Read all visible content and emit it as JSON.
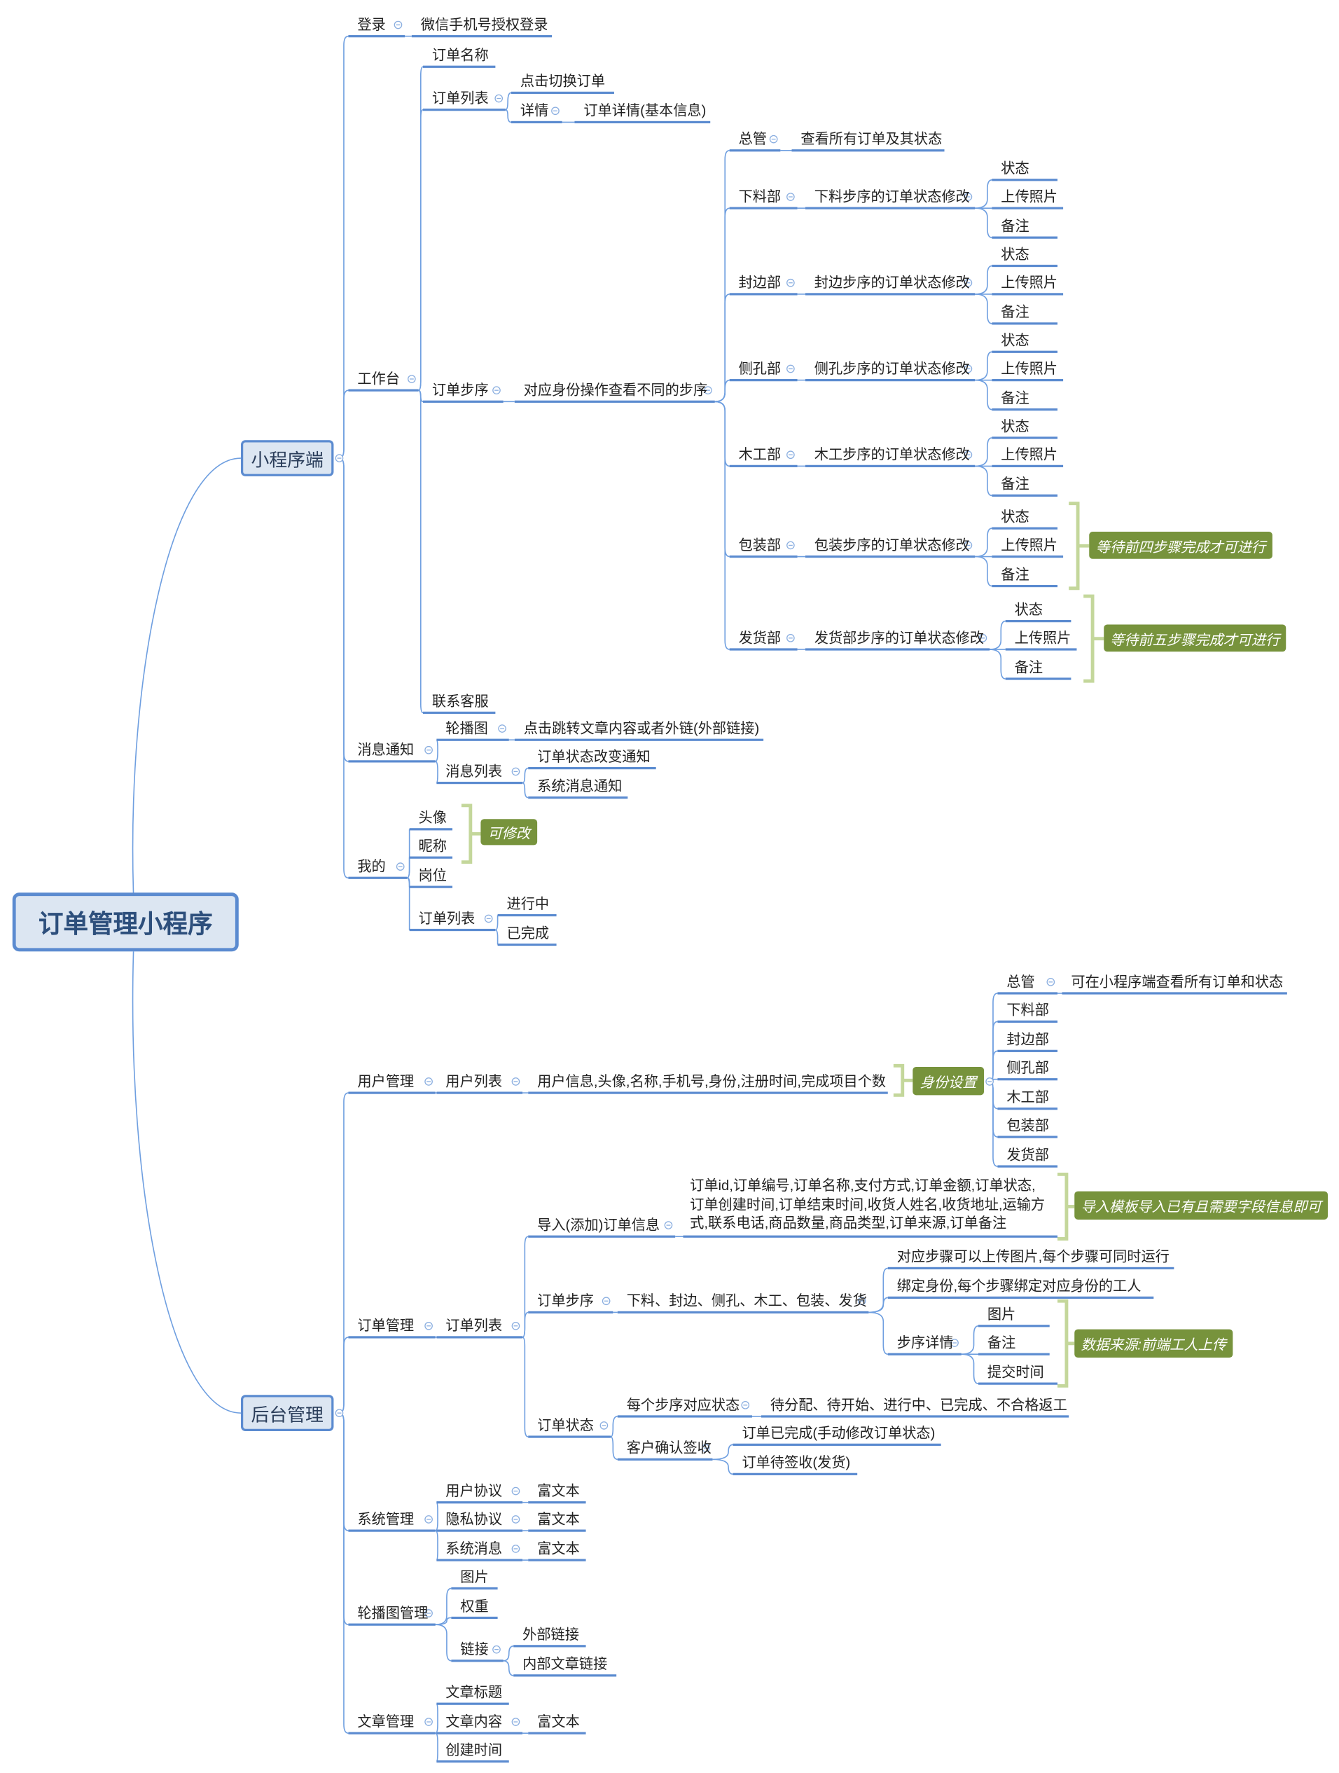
{
  "root": "订单管理小程序",
  "mini_program": "小程序端",
  "admin": "后台管理",
  "colors": {
    "line": "#5b8bd0",
    "box_fill": "#dce6f2",
    "tag_fill": "#77933c",
    "bracket": "#c4d79b"
  },
  "icons": {
    "collapse": "collapse-toggle-icon"
  },
  "nodes": {
    "login": "登录",
    "login_wx": "微信手机号授权登录",
    "wb": "工作台",
    "wb_name": "订单名称",
    "wb_list": "订单列表",
    "wb_list_switch": "点击切换订单",
    "wb_list_detail": "详情",
    "wb_list_detail_info": "订单详情(基本信息)",
    "wb_step": "订单步序",
    "wb_step_desc": "对应身份操作查看不同的步序",
    "d0": "总管",
    "d0c": "查看所有订单及其状态",
    "d1": "下料部",
    "d1c": "下料步序的订单状态修改",
    "d1s": "状态",
    "d1p": "上传照片",
    "d1r": "备注",
    "d2": "封边部",
    "d2c": "封边步序的订单状态修改",
    "d2s": "状态",
    "d2p": "上传照片",
    "d2r": "备注",
    "d3": "侧孔部",
    "d3c": "侧孔步序的订单状态修改",
    "d3s": "状态",
    "d3p": "上传照片",
    "d3r": "备注",
    "d4": "木工部",
    "d4c": "木工步序的订单状态修改",
    "d4s": "状态",
    "d4p": "上传照片",
    "d4r": "备注",
    "d5": "包装部",
    "d5c": "包装步序的订单状态修改",
    "d5s": "状态",
    "d5p": "上传照片",
    "d5r": "备注",
    "d6": "发货部",
    "d6c": "发货部步序的订单状态修改",
    "d6s": "状态",
    "d6p": "上传照片",
    "d6r": "备注",
    "wb_cs": "联系客服",
    "msg": "消息通知",
    "msg_banner": "轮播图",
    "msg_banner_c": "点击跳转文章内容或者外链(外部链接)",
    "msg_list": "消息列表",
    "msg_list_order": "订单状态改变通知",
    "msg_list_sys": "系统消息通知",
    "me": "我的",
    "me_avatar": "头像",
    "me_nick": "昵称",
    "me_post": "岗位",
    "me_orders": "订单列表",
    "me_orders_doing": "进行中",
    "me_orders_done": "已完成",
    "um": "用户管理",
    "um_list": "用户列表",
    "um_info": "用户信息,头像,名称,手机号,身份,注册时间,完成项目个数",
    "r0": "总管",
    "r0c": "可在小程序端查看所有订单和状态",
    "r1": "下料部",
    "r2": "封边部",
    "r3": "侧孔部",
    "r4": "木工部",
    "r5": "包装部",
    "r6": "发货部",
    "om": "订单管理",
    "om_list": "订单列表",
    "om_imp": "导入(添加)订单信息",
    "om_imp_f": "订单id,订单编号,订单名称,支付方式,订单金额,订单状态,\n订单创建时间,订单结束时间,收货人姓名,收货地址,运输方\n式,联系电话,商品数量,商品类型,订单来源,订单备注",
    "om_step": "订单步序",
    "om_step_c": "下料、封边、侧孔、木工、包装、发货",
    "om_step_1": "对应步骤可以上传图片,每个步骤可同时运行",
    "om_step_2": "绑定身份,每个步骤绑定对应身份的工人",
    "om_step_d": "步序详情",
    "om_step_d1": "图片",
    "om_step_d2": "备注",
    "om_step_d3": "提交时间",
    "om_stat": "订单状态",
    "om_stat_1": "每个步序对应状态",
    "om_stat_1c": "待分配、待开始、进行中、已完成、不合格返工",
    "om_stat_2": "客户确认签收",
    "om_stat_2a": "订单已完成(手动修改订单状态)",
    "om_stat_2b": "订单待签收(发货)",
    "sys": "系统管理",
    "sys_user": "用户协议",
    "sys_user_c": "富文本",
    "sys_priv": "隐私协议",
    "sys_priv_c": "富文本",
    "sys_msg": "系统消息",
    "sys_msg_c": "富文本",
    "ban": "轮播图管理",
    "ban_img": "图片",
    "ban_w": "权重",
    "ban_link": "链接",
    "ban_link_ext": "外部链接",
    "ban_link_int": "内部文章链接",
    "art": "文章管理",
    "art_title": "文章标题",
    "art_content": "文章内容",
    "art_content_c": "富文本",
    "art_time": "创建时间"
  },
  "tags": {
    "wait4": "等待前四步骤完成才可进行",
    "wait5": "等待前五步骤完成才可进行",
    "editable": "可修改",
    "role": "身份设置",
    "import": "导入模板导入已有且需要字段信息即可",
    "source": "数据来源:前端工人上传"
  }
}
